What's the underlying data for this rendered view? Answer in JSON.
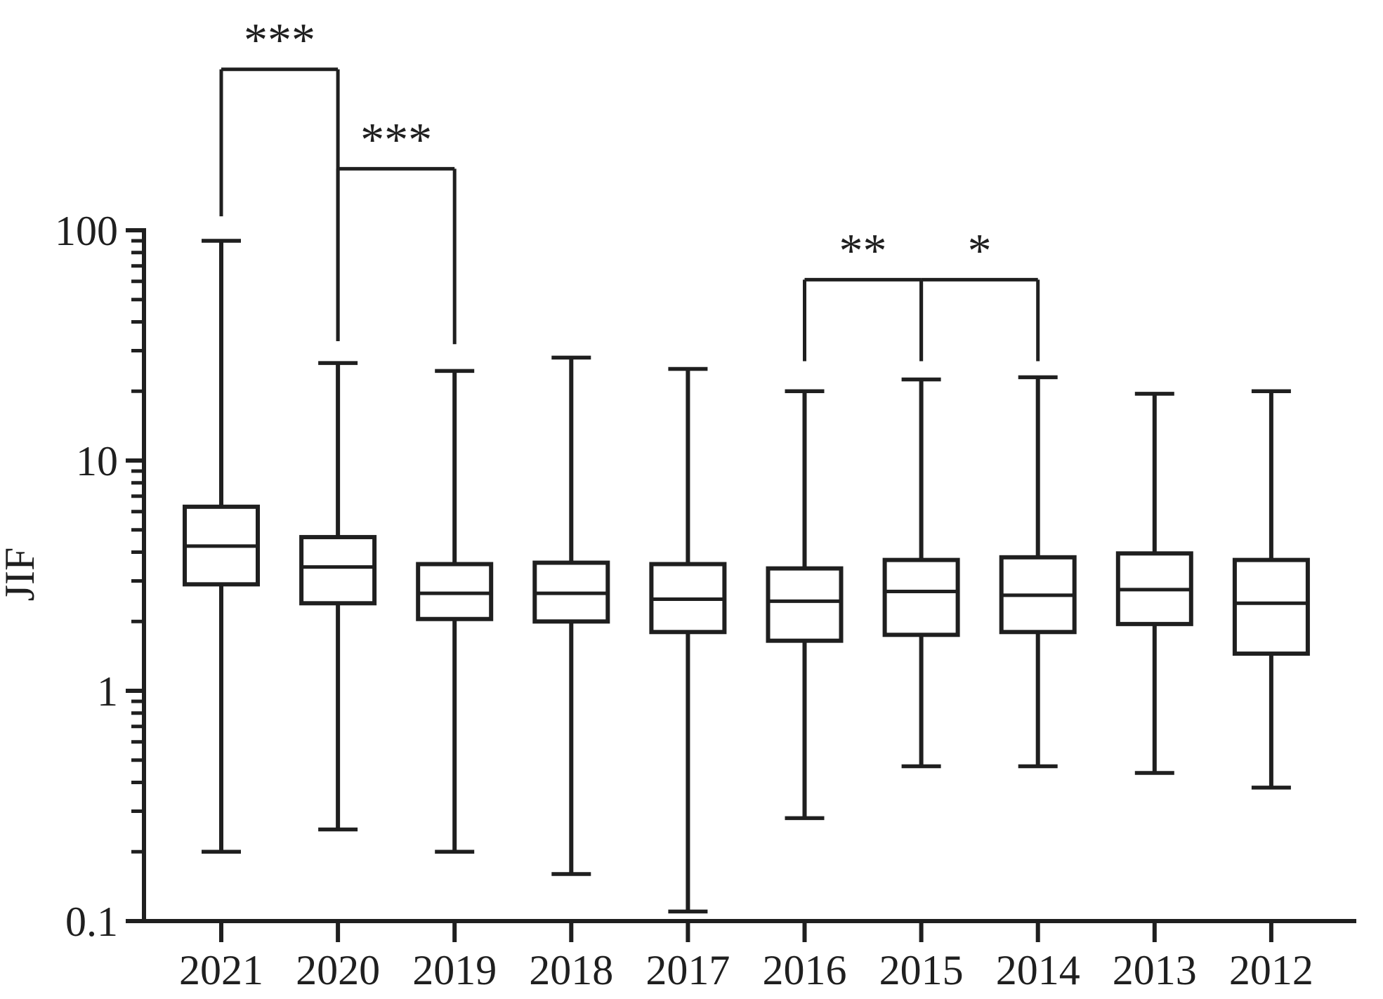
{
  "figure": {
    "background_color": "#ffffff",
    "ink_color": "#1f1f1f"
  },
  "y_axis": {
    "label": "JIF",
    "scale": "log",
    "tick_labels": [
      "100",
      "10",
      "1",
      "0.1"
    ],
    "tick_values": [
      100,
      10,
      1,
      0.1
    ]
  },
  "x_axis": {
    "tick_labels": [
      "2021",
      "2020",
      "2019",
      "2018",
      "2017",
      "2016",
      "2015",
      "2014",
      "2013",
      "2012"
    ]
  },
  "chart_data": {
    "type": "boxplot",
    "title": "",
    "xlabel": "",
    "ylabel": "JIF",
    "yscale": "log",
    "ylim": [
      0.1,
      100
    ],
    "grid": false,
    "legend": "none",
    "categories": [
      "2021",
      "2020",
      "2019",
      "2018",
      "2017",
      "2016",
      "2015",
      "2014",
      "2013",
      "2012"
    ],
    "series": [
      {
        "year": "2021",
        "whisker_low": 0.2,
        "q1": 2.9,
        "median": 4.25,
        "q3": 6.3,
        "whisker_high": 90.0
      },
      {
        "year": "2020",
        "whisker_low": 0.25,
        "q1": 2.4,
        "median": 3.45,
        "q3": 4.65,
        "whisker_high": 26.5
      },
      {
        "year": "2019",
        "whisker_low": 0.2,
        "q1": 2.05,
        "median": 2.65,
        "q3": 3.55,
        "whisker_high": 24.5
      },
      {
        "year": "2018",
        "whisker_low": 0.16,
        "q1": 2.0,
        "median": 2.65,
        "q3": 3.6,
        "whisker_high": 28.0
      },
      {
        "year": "2017",
        "whisker_low": 0.11,
        "q1": 1.8,
        "median": 2.5,
        "q3": 3.55,
        "whisker_high": 25.0
      },
      {
        "year": "2016",
        "whisker_low": 0.28,
        "q1": 1.65,
        "median": 2.45,
        "q3": 3.4,
        "whisker_high": 20.0
      },
      {
        "year": "2015",
        "whisker_low": 0.47,
        "q1": 1.75,
        "median": 2.7,
        "q3": 3.7,
        "whisker_high": 22.5
      },
      {
        "year": "2014",
        "whisker_low": 0.47,
        "q1": 1.8,
        "median": 2.6,
        "q3": 3.8,
        "whisker_high": 23.0
      },
      {
        "year": "2013",
        "whisker_low": 0.44,
        "q1": 1.95,
        "median": 2.75,
        "q3": 3.95,
        "whisker_high": 19.5
      },
      {
        "year": "2012",
        "whisker_low": 0.38,
        "q1": 1.45,
        "median": 2.4,
        "q3": 3.7,
        "whisker_high": 20.0
      }
    ],
    "significance_brackets": [
      {
        "label": "***",
        "from": "2021",
        "to": "2020",
        "bar_value": 500,
        "from_tip_value": 115,
        "to_tip_value": 33
      },
      {
        "label": "***",
        "from": "2020",
        "to": "2019",
        "bar_value": 185,
        "from_tip_value": 33,
        "to_tip_value": 32
      },
      {
        "label": "**",
        "from": "2016",
        "to": "2015",
        "bar_value": 61,
        "from_tip_value": 27,
        "to_tip_value": 27
      },
      {
        "label": "*",
        "from": "2015",
        "to": "2014",
        "bar_value": 61,
        "from_tip_value": 27,
        "to_tip_value": 27
      }
    ]
  }
}
